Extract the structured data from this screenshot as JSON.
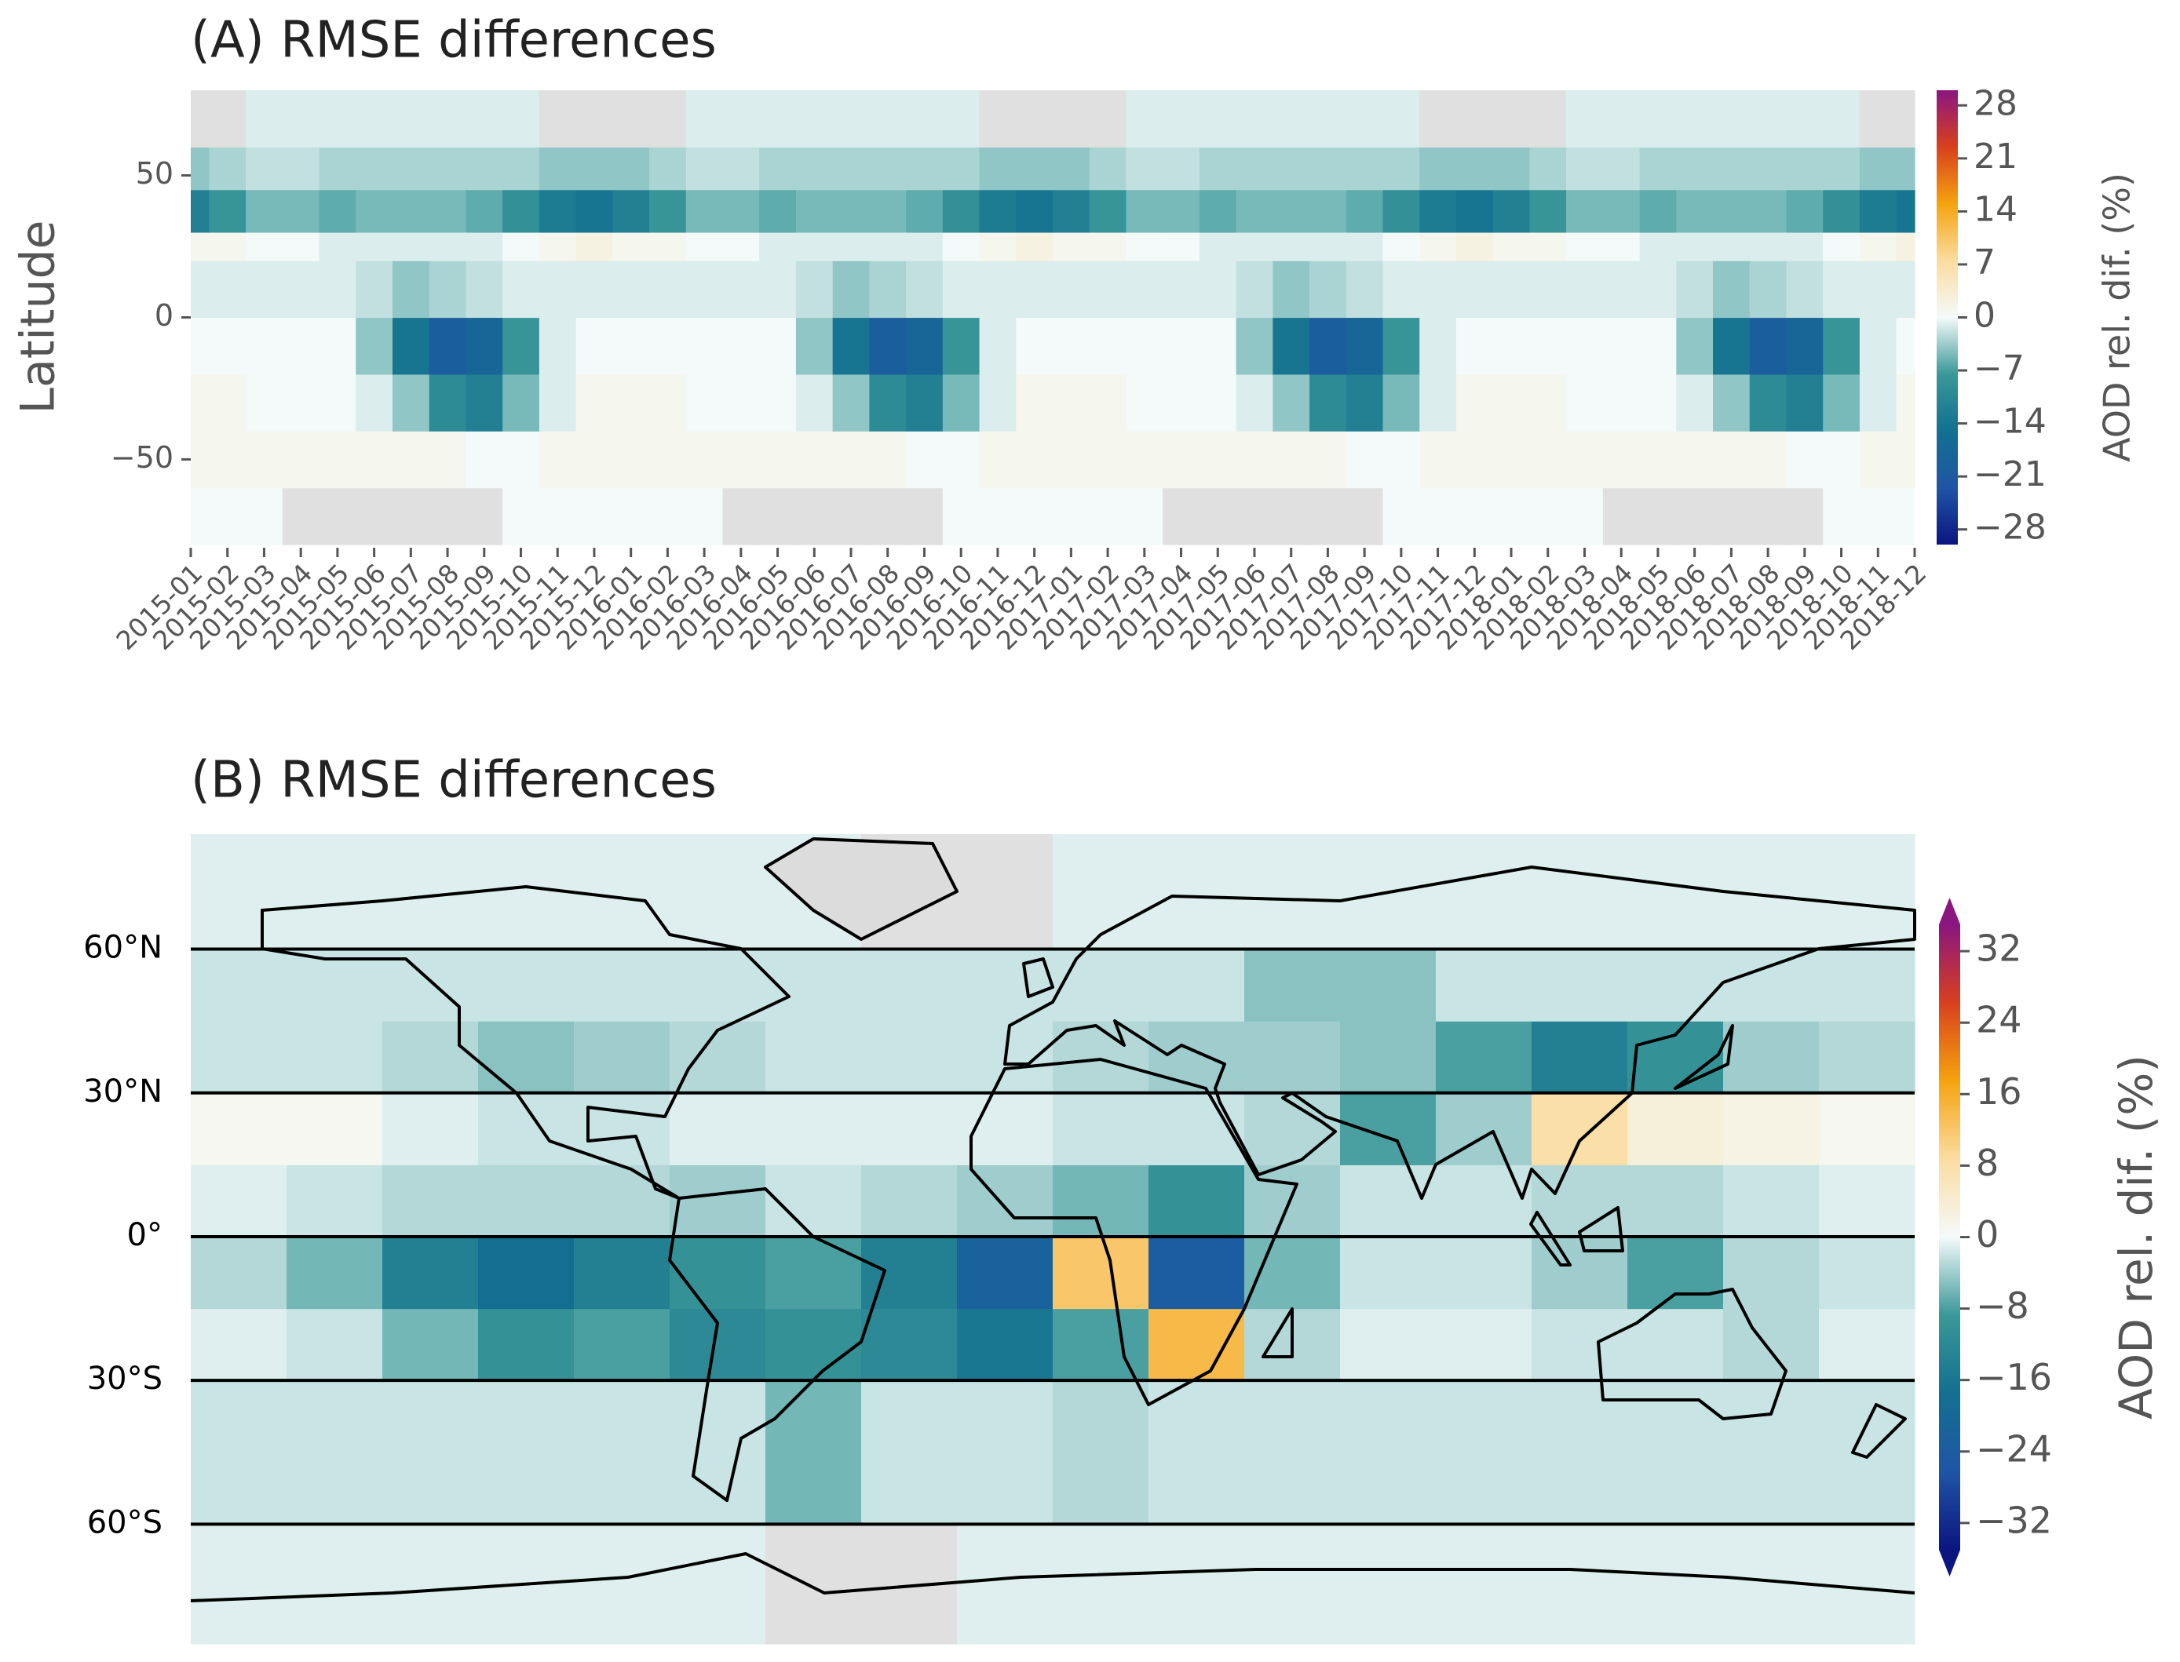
{
  "chart_data": [
    {
      "type": "heatmap",
      "title": "(A) RMSE differences",
      "y_label": "Latitude",
      "categories": [
        "2015-01",
        "2015-02",
        "2015-03",
        "2015-04",
        "2015-05",
        "2015-06",
        "2015-07",
        "2015-08",
        "2015-09",
        "2015-10",
        "2015-11",
        "2015-12",
        "2016-01",
        "2016-02",
        "2016-03",
        "2016-04",
        "2016-05",
        "2016-06",
        "2016-07",
        "2016-08",
        "2016-09",
        "2016-10",
        "2016-11",
        "2016-12",
        "2017-01",
        "2017-02",
        "2017-03",
        "2017-04",
        "2017-05",
        "2017-06",
        "2017-07",
        "2017-08",
        "2017-09",
        "2017-10",
        "2017-11",
        "2017-12",
        "2018-01",
        "2018-02",
        "2018-03",
        "2018-04",
        "2018-05",
        "2018-06",
        "2018-07",
        "2018-08",
        "2018-09",
        "2018-10",
        "2018-11",
        "2018-12"
      ],
      "ybins": [
        -80,
        -60,
        -40,
        -20,
        0,
        20,
        30,
        45,
        60,
        80
      ],
      "values": [
        [
          0,
          0,
          0,
          null,
          null,
          null,
          null,
          null,
          null,
          0,
          0,
          0,
          0,
          0,
          0,
          null,
          null,
          null,
          null,
          null,
          null,
          0,
          0,
          0,
          0,
          0,
          0,
          null,
          null,
          null,
          null,
          null,
          null,
          0,
          0,
          0,
          0,
          0,
          0,
          null,
          null,
          null,
          null,
          null,
          null,
          0,
          0,
          0
        ],
        [
          1,
          1,
          1,
          1,
          1,
          1,
          1,
          1,
          0,
          0,
          1,
          1,
          1,
          1,
          1,
          1,
          1,
          1,
          1,
          1,
          0,
          0,
          1,
          1,
          1,
          1,
          1,
          1,
          1,
          1,
          1,
          1,
          0,
          0,
          1,
          1,
          1,
          1,
          1,
          1,
          1,
          1,
          1,
          1,
          0,
          0,
          1,
          1
        ],
        [
          1,
          1,
          0,
          0,
          0,
          -1,
          -4,
          -10,
          -12,
          -5,
          -1,
          1,
          1,
          1,
          0,
          0,
          0,
          -1,
          -4,
          -10,
          -12,
          -5,
          -1,
          1,
          1,
          1,
          0,
          0,
          0,
          -1,
          -4,
          -10,
          -12,
          -5,
          -1,
          1,
          1,
          1,
          0,
          0,
          0,
          -1,
          -4,
          -10,
          -12,
          -5,
          -1,
          1
        ],
        [
          0,
          0,
          0,
          0,
          0,
          -4,
          -14,
          -20,
          -18,
          -8,
          -1,
          0,
          0,
          0,
          0,
          0,
          0,
          -4,
          -14,
          -20,
          -18,
          -8,
          -1,
          0,
          0,
          0,
          0,
          0,
          0,
          -4,
          -14,
          -20,
          -18,
          -8,
          -1,
          0,
          0,
          0,
          0,
          0,
          0,
          -4,
          -14,
          -20,
          -18,
          -8,
          -1,
          0
        ],
        [
          -1,
          -1,
          -1,
          -1,
          -1,
          -2,
          -4,
          -3,
          -2,
          -1,
          -1,
          -1,
          -1,
          -1,
          -1,
          -1,
          -1,
          -2,
          -4,
          -3,
          -2,
          -1,
          -1,
          -1,
          -1,
          -1,
          -1,
          -1,
          -1,
          -2,
          -4,
          -3,
          -2,
          -1,
          -1,
          -1,
          -1,
          -1,
          -1,
          -1,
          -1,
          -2,
          -4,
          -3,
          -2,
          -1,
          -1,
          -1
        ],
        [
          1,
          1,
          0,
          0,
          -1,
          -1,
          -1,
          -1,
          -1,
          0,
          1,
          2,
          1,
          1,
          0,
          0,
          -1,
          -1,
          -1,
          -1,
          -1,
          0,
          1,
          2,
          1,
          1,
          0,
          0,
          -1,
          -1,
          -1,
          -1,
          -1,
          0,
          1,
          2,
          1,
          1,
          0,
          0,
          -1,
          -1,
          -1,
          -1,
          -1,
          0,
          1,
          2
        ],
        [
          -12,
          -8,
          -5,
          -5,
          -6,
          -5,
          -5,
          -5,
          -6,
          -9,
          -13,
          -14,
          -12,
          -8,
          -5,
          -5,
          -6,
          -5,
          -5,
          -5,
          -6,
          -9,
          -13,
          -14,
          -12,
          -8,
          -5,
          -5,
          -6,
          -5,
          -5,
          -5,
          -6,
          -9,
          -13,
          -14,
          -12,
          -8,
          -5,
          -5,
          -6,
          -5,
          -5,
          -5,
          -6,
          -9,
          -13,
          -14
        ],
        [
          -4,
          -3,
          -2,
          -2,
          -3,
          -3,
          -3,
          -3,
          -3,
          -3,
          -4,
          -4,
          -4,
          -3,
          -2,
          -2,
          -3,
          -3,
          -3,
          -3,
          -3,
          -3,
          -4,
          -4,
          -4,
          -3,
          -2,
          -2,
          -3,
          -3,
          -3,
          -3,
          -3,
          -3,
          -4,
          -4,
          -4,
          -3,
          -2,
          -2,
          -3,
          -3,
          -3,
          -3,
          -3,
          -3,
          -4,
          -4
        ],
        [
          null,
          null,
          -1,
          -1,
          -1,
          -1,
          -1,
          -1,
          -1,
          -1,
          null,
          null,
          null,
          null,
          -1,
          -1,
          -1,
          -1,
          -1,
          -1,
          -1,
          -1,
          null,
          null,
          null,
          null,
          -1,
          -1,
          -1,
          -1,
          -1,
          -1,
          -1,
          -1,
          null,
          null,
          null,
          null,
          -1,
          -1,
          -1,
          -1,
          -1,
          -1,
          -1,
          -1,
          null,
          null
        ]
      ],
      "ylim": [
        -80,
        80
      ],
      "yticks": [
        {
          "value": -50,
          "label": "−50"
        },
        0,
        50
      ],
      "missing_color": "#e0e0e0",
      "colorbar": {
        "label": "AOD rel. dif. (%)",
        "clim": [
          -30,
          30
        ],
        "ticks": [
          {
            "value": -28,
            "label": "−28"
          },
          {
            "value": -21,
            "label": "−21"
          },
          {
            "value": -14,
            "label": "−14"
          },
          {
            "value": -7,
            "label": "−7"
          },
          0,
          7,
          14,
          21,
          28
        ],
        "colors": [
          "#0b1580",
          "#1f55a5",
          "#137090",
          "#3a9898",
          "#f4fafa",
          "#fbdca0",
          "#f5a30f",
          "#d8401e",
          "#8a1680"
        ]
      }
    },
    {
      "type": "map",
      "title": "(B) RMSE differences",
      "xlim": [
        -180,
        180
      ],
      "ylim": [
        -85,
        84
      ],
      "xbins": [
        -180,
        -160,
        -140,
        -120,
        -100,
        -80,
        -60,
        -40,
        -20,
        0,
        20,
        40,
        60,
        80,
        100,
        120,
        140,
        160,
        180
      ],
      "ybins": [
        -85,
        -60,
        -30,
        -15,
        0,
        15,
        30,
        45,
        60,
        84
      ],
      "values": [
        [
          -1,
          -1,
          -1,
          -1,
          -1,
          -1,
          null,
          null,
          -1,
          -1,
          -1,
          -1,
          -1,
          -1,
          -1,
          -1,
          -1,
          -1
        ],
        [
          -2,
          -2,
          -2,
          -2,
          -2,
          -2,
          -6,
          -2,
          -2,
          -3,
          -2,
          -2,
          -2,
          -2,
          -2,
          -2,
          -2,
          -2
        ],
        [
          -1,
          -2,
          -6,
          -10,
          -8,
          -12,
          -10,
          -12,
          -16,
          -8,
          14,
          -3,
          -1,
          -1,
          -2,
          -2,
          -3,
          -1
        ],
        [
          -3,
          -6,
          -14,
          -18,
          -14,
          -10,
          -8,
          -14,
          -22,
          12,
          -24,
          -6,
          -2,
          -2,
          -4,
          -8,
          -3,
          -2
        ],
        [
          -1,
          -2,
          -3,
          -3,
          -3,
          -4,
          -2,
          -3,
          -4,
          -6,
          -10,
          -4,
          -2,
          -2,
          -3,
          -3,
          -2,
          -1
        ],
        [
          1,
          1,
          -1,
          -2,
          -2,
          -1,
          -1,
          -1,
          -1,
          -2,
          -2,
          -3,
          -8,
          -4,
          8,
          3,
          2,
          1
        ],
        [
          -2,
          -2,
          -3,
          -5,
          -4,
          -3,
          -2,
          -2,
          -2,
          -3,
          -4,
          -4,
          -5,
          -8,
          -14,
          -10,
          -4,
          -3
        ],
        [
          -2,
          -2,
          -2,
          -2,
          -2,
          -2,
          -2,
          -2,
          -2,
          -2,
          -2,
          -5,
          -5,
          -2,
          -2,
          -2,
          -2,
          -2
        ],
        [
          -1,
          -1,
          -1,
          -1,
          -1,
          -1,
          -1,
          null,
          null,
          -1,
          -1,
          -1,
          -1,
          -1,
          -1,
          -1,
          -1,
          -1
        ]
      ],
      "yticks": [
        {
          "value": -60,
          "label": "60°S"
        },
        {
          "value": -30,
          "label": "30°S"
        },
        {
          "value": 0,
          "label": "0°"
        },
        {
          "value": 30,
          "label": "30°N"
        },
        {
          "value": 60,
          "label": "60°N"
        }
      ],
      "grid": true,
      "missing_color": "#e0e0e0",
      "colorbar": {
        "label": "AOD rel. dif. (%)",
        "clim": [
          -35,
          35
        ],
        "extend": "both",
        "ticks": [
          {
            "value": -32,
            "label": "−32"
          },
          {
            "value": -24,
            "label": "−24"
          },
          {
            "value": -16,
            "label": "−16"
          },
          {
            "value": -8,
            "label": "−8"
          },
          0,
          8,
          16,
          24,
          32
        ],
        "colors": [
          "#0b1580",
          "#1f55a5",
          "#137090",
          "#3a9898",
          "#f4fafa",
          "#fbdca0",
          "#f5a30f",
          "#d8401e",
          "#8a1680"
        ]
      }
    }
  ]
}
